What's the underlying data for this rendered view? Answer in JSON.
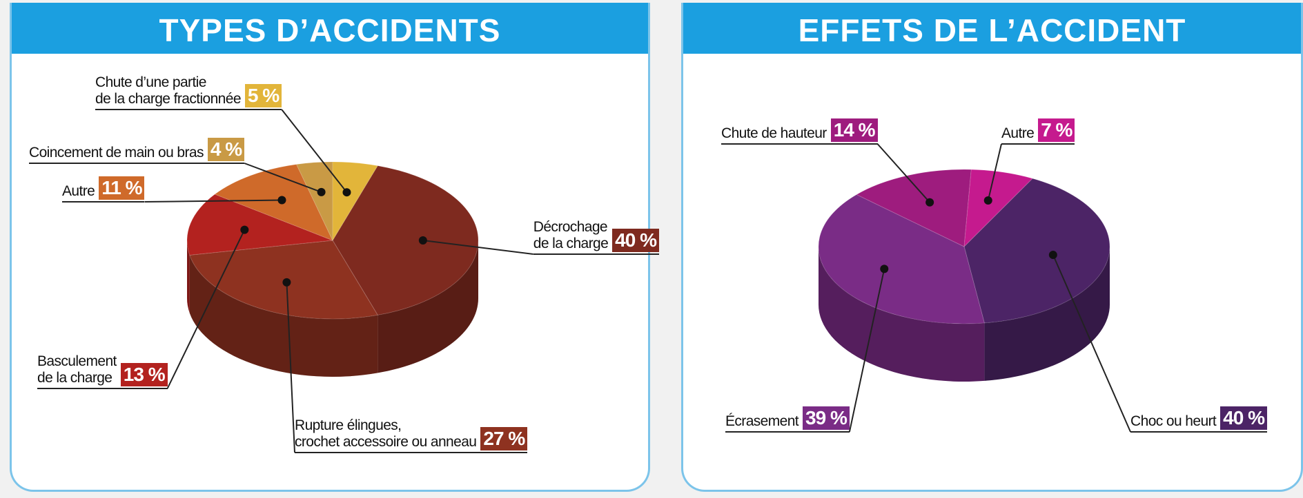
{
  "chart_data": [
    {
      "type": "pie",
      "title": "TYPES D’ACCIDENTS",
      "categories": [
        "Décrochage\nde la charge",
        "Rupture élingues,\ncrochet accessoire ou anneau",
        "Basculement\nde la charge",
        "Autre",
        "Coincement de main ou bras",
        "Chute d’une partie\nde la charge fractionnée"
      ],
      "values": [
        40,
        27,
        13,
        11,
        4,
        5
      ],
      "value_labels": [
        "40 %",
        "27 %",
        "13 %",
        "11 %",
        "4 %",
        "5 %"
      ],
      "colors": [
        "#7e2a1f",
        "#8e3220",
        "#b3221f",
        "#cf6a2a",
        "#c99a45",
        "#e2b53a"
      ]
    },
    {
      "type": "pie",
      "title": "EFFETS DE L’ACCIDENT",
      "categories": [
        "Choc ou heurt",
        "Écrasement",
        "Chute de hauteur",
        "Autre"
      ],
      "values": [
        40,
        39,
        14,
        7
      ],
      "value_labels": [
        "40 %",
        "39 %",
        "14 %",
        "7 %"
      ],
      "colors": [
        "#4c2466",
        "#7a2c86",
        "#9e1c7e",
        "#c51a8e"
      ]
    }
  ]
}
